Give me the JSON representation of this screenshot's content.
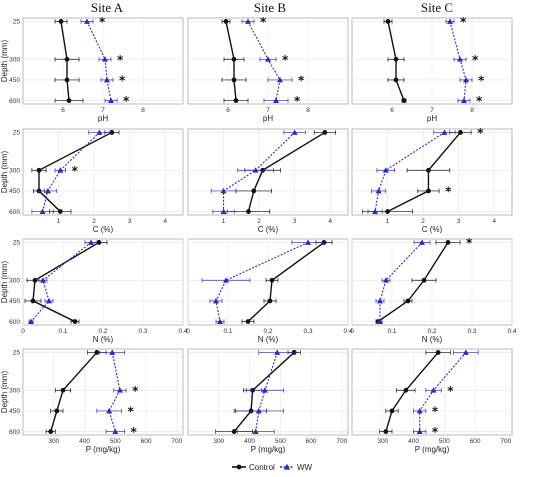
{
  "site_titles": [
    "Site A",
    "Site B",
    "Site C"
  ],
  "legend": {
    "control": "Control",
    "ww": "WW"
  },
  "colors": {
    "control": "#111111",
    "ww": "#2b2bb8",
    "grid": "#e6e6e6",
    "frame": "#aaaaaa"
  },
  "chart_data": [
    {
      "type": "line",
      "variable": "pH",
      "xlabel": "pH",
      "ylabel": "Depth (mm)",
      "xlim": [
        5,
        9
      ],
      "xticks": [
        6,
        7,
        8
      ],
      "ylim": [
        0,
        625
      ],
      "yticks": [
        25,
        300,
        450,
        600
      ],
      "panels": [
        {
          "site": "Site A",
          "control": {
            "x": [
              5.95,
              6.1,
              6.1,
              6.15
            ],
            "err": [
              0.15,
              0.3,
              0.3,
              0.35
            ]
          },
          "ww": {
            "x": [
              6.6,
              7.05,
              7.1,
              7.2
            ],
            "err": [
              0.15,
              0.15,
              0.15,
              0.15
            ]
          },
          "stars": [
            true,
            true,
            true,
            true
          ]
        },
        {
          "site": "Site B",
          "control": {
            "x": [
              5.95,
              6.15,
              6.15,
              6.2
            ],
            "err": [
              0.1,
              0.25,
              0.3,
              0.3
            ]
          },
          "ww": {
            "x": [
              6.5,
              7.0,
              7.3,
              7.2
            ],
            "err": [
              0.15,
              0.2,
              0.3,
              0.3
            ]
          },
          "stars": [
            true,
            true,
            true,
            true
          ]
        },
        {
          "site": "Site C",
          "control": {
            "x": [
              5.9,
              6.1,
              6.1,
              6.3
            ],
            "err": [
              0.1,
              0.2,
              0.2,
              0.05
            ]
          },
          "ww": {
            "x": [
              7.45,
              7.7,
              7.85,
              7.8
            ],
            "err": [
              0.1,
              0.15,
              0.15,
              0.15
            ]
          },
          "stars": [
            true,
            true,
            true,
            true
          ]
        }
      ]
    },
    {
      "type": "line",
      "variable": "C",
      "xlabel": "C (%)",
      "ylabel": "Depth (mm)",
      "xlim": [
        0,
        4.5
      ],
      "xticks": [
        1,
        2,
        3,
        4
      ],
      "ylim": [
        0,
        625
      ],
      "yticks": [
        25,
        300,
        450,
        600
      ],
      "panels": [
        {
          "site": "Site A",
          "control": {
            "x": [
              2.5,
              0.45,
              0.45,
              1.05
            ],
            "err": [
              0.2,
              0.2,
              0.15,
              0.3
            ]
          },
          "ww": {
            "x": [
              2.15,
              1.05,
              0.7,
              0.55
            ],
            "err": [
              0.3,
              0.15,
              0.25,
              0.3
            ]
          },
          "stars": [
            false,
            true,
            false,
            false
          ]
        },
        {
          "site": "Site B",
          "control": {
            "x": [
              3.85,
              2.1,
              1.85,
              1.7
            ],
            "err": [
              0.3,
              0.5,
              0.5,
              0.6
            ]
          },
          "ww": {
            "x": [
              3.0,
              1.9,
              1.0,
              1.0
            ],
            "err": [
              0.3,
              0.5,
              0.35,
              0.3
            ]
          },
          "stars": [
            false,
            false,
            false,
            false
          ]
        },
        {
          "site": "Site C",
          "control": {
            "x": [
              3.05,
              2.15,
              2.15,
              1.0
            ],
            "err": [
              0.3,
              0.6,
              0.3,
              0.7
            ]
          },
          "ww": {
            "x": [
              2.6,
              0.95,
              0.75,
              0.65
            ],
            "err": [
              0.3,
              0.25,
              0.2,
              0.2
            ]
          },
          "stars": [
            true,
            false,
            true,
            false
          ]
        }
      ]
    },
    {
      "type": "line",
      "variable": "N",
      "xlabel": "N (%)",
      "ylabel": "Depth (mm)",
      "xlim": [
        0,
        0.4
      ],
      "xticks": [
        0.0,
        0.1,
        0.2,
        0.3,
        0.4
      ],
      "ylim": [
        0,
        625
      ],
      "yticks": [
        25,
        300,
        450,
        600
      ],
      "panels": [
        {
          "site": "Site A",
          "control": {
            "x": [
              0.19,
              0.03,
              0.025,
              0.13
            ],
            "err": [
              0.02,
              0.02,
              0.02,
              0.01
            ]
          },
          "ww": {
            "x": [
              0.17,
              0.05,
              0.065,
              0.02
            ],
            "err": [
              0.015,
              0.01,
              0.01,
              0.005
            ]
          },
          "stars": [
            false,
            false,
            false,
            false
          ]
        },
        {
          "site": "Site B",
          "control": {
            "x": [
              0.34,
              0.21,
              0.205,
              0.15
            ],
            "err": [
              0.02,
              0.015,
              0.015,
              0.015
            ]
          },
          "ww": {
            "x": [
              0.3,
              0.095,
              0.07,
              0.08
            ],
            "err": [
              0.04,
              0.06,
              0.015,
              0.01
            ]
          },
          "stars": [
            false,
            false,
            false,
            false
          ]
        },
        {
          "site": "Site C",
          "control": {
            "x": [
              0.24,
              0.18,
              0.14,
              0.065
            ],
            "err": [
              0.03,
              0.03,
              0.01,
              0.005
            ]
          },
          "ww": {
            "x": [
              0.175,
              0.085,
              0.07,
              0.07
            ],
            "err": [
              0.02,
              0.01,
              0.01,
              0.005
            ]
          },
          "stars": [
            true,
            false,
            false,
            false
          ]
        }
      ]
    },
    {
      "type": "line",
      "variable": "P",
      "xlabel": "P (mg/kg)",
      "ylabel": "Depth (mm)",
      "xlim": [
        200,
        720
      ],
      "xticks": [
        300,
        400,
        500,
        600,
        700
      ],
      "ylim": [
        0,
        625
      ],
      "yticks": [
        25,
        300,
        450,
        600
      ],
      "panels": [
        {
          "site": "Site A",
          "control": {
            "x": [
              440,
              330,
              310,
              290
            ],
            "err": [
              30,
              25,
              20,
              15
            ]
          },
          "ww": {
            "x": [
              490,
              515,
              480,
              500
            ],
            "err": [
              40,
              20,
              40,
              30
            ]
          },
          "stars": [
            false,
            true,
            true,
            true
          ]
        },
        {
          "site": "Site B",
          "control": {
            "x": [
              545,
              410,
              405,
              350
            ],
            "err": [
              20,
              30,
              50,
              60
            ]
          },
          "ww": {
            "x": [
              490,
              450,
              430,
              420
            ],
            "err": [
              60,
              60,
              80,
              60
            ]
          },
          "stars": [
            false,
            false,
            false,
            false
          ]
        },
        {
          "site": "Site C",
          "control": {
            "x": [
              480,
              375,
              330,
              310
            ],
            "err": [
              40,
              30,
              20,
              20
            ]
          },
          "ww": {
            "x": [
              570,
              465,
              420,
              420
            ],
            "err": [
              40,
              25,
              20,
              20
            ]
          },
          "stars": [
            false,
            true,
            true,
            true
          ]
        }
      ]
    }
  ]
}
